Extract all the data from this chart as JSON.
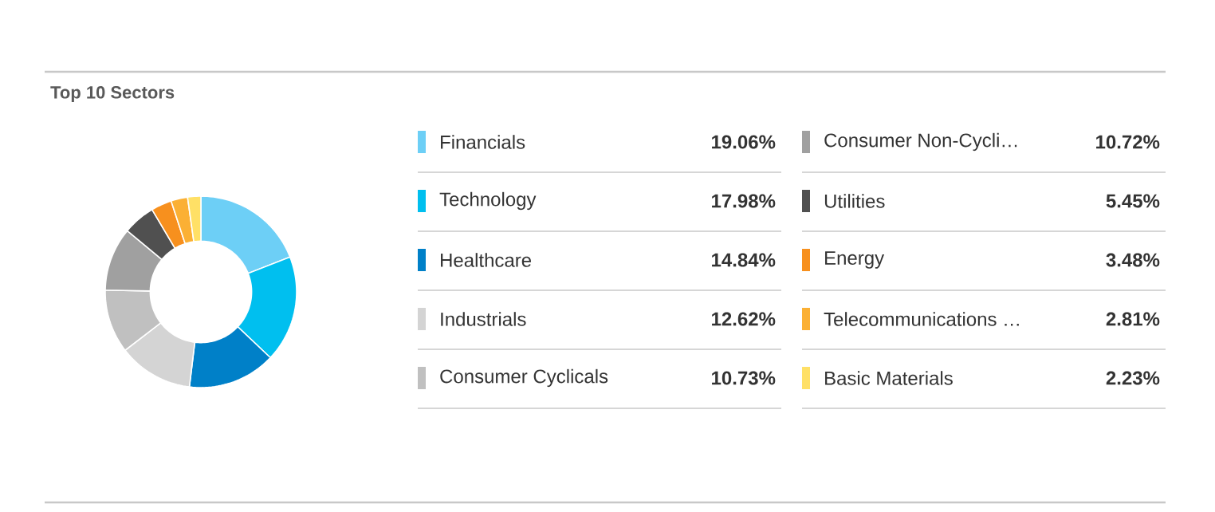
{
  "chart_data": {
    "type": "donut",
    "title": "Top 10 Sectors",
    "categories": [
      "Financials",
      "Technology",
      "Healthcare",
      "Industrials",
      "Consumer Cyclicals",
      "Consumer Non-Cycli…",
      "Utilities",
      "Energy",
      "Telecommunications …",
      "Basic Materials"
    ],
    "values": [
      19.06,
      17.98,
      14.84,
      12.62,
      10.73,
      10.72,
      5.45,
      3.48,
      2.81,
      2.23
    ],
    "colors": [
      "#6dcff6",
      "#00bfef",
      "#0080c8",
      "#d4d4d4",
      "#c0c0c0",
      "#a0a0a0",
      "#505050",
      "#f7901e",
      "#fbb034",
      "#ffe066"
    ],
    "value_labels": [
      "19.06%",
      "17.98%",
      "14.84%",
      "12.62%",
      "10.73%",
      "10.72%",
      "5.45%",
      "3.48%",
      "2.81%",
      "2.23%"
    ],
    "legend": "right"
  }
}
